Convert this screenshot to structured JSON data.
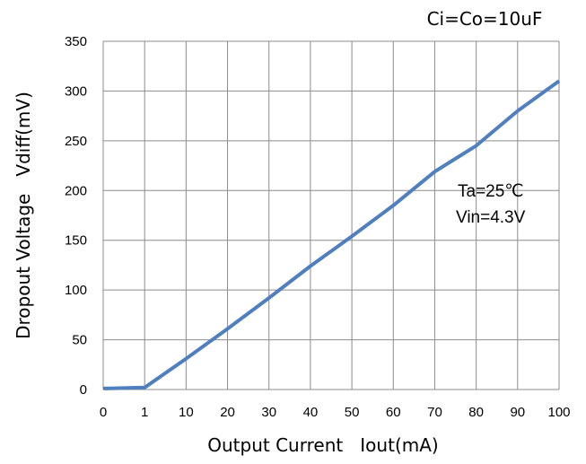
{
  "chart_data": {
    "type": "line",
    "title": "",
    "xlabel": "Output Current   Iout(mA)",
    "ylabel": "Dropout Voltage   Vdiff(mV)",
    "x_tick_labels": [
      "0",
      "1",
      "10",
      "20",
      "30",
      "40",
      "50",
      "60",
      "70",
      "80",
      "90",
      "100"
    ],
    "y_tick_labels": [
      "0",
      "50",
      "100",
      "150",
      "200",
      "250",
      "300",
      "350"
    ],
    "ylim": [
      0,
      350
    ],
    "grid": true,
    "x_axis_note": "categorical axis (0, 1, 10, ..., 100 evenly spaced)",
    "annotations": {
      "condition": "Ci=Co=10uF",
      "temperature": "Ta=25℃",
      "input_voltage": "Vin=4.3V"
    },
    "series": [
      {
        "color": "#4f7fbf",
        "points": [
          {
            "x": 0,
            "y": 1
          },
          {
            "x": 1,
            "y": 2
          },
          {
            "x": 10,
            "y": 31
          },
          {
            "x": 20,
            "y": 61
          },
          {
            "x": 30,
            "y": 92
          },
          {
            "x": 40,
            "y": 124
          },
          {
            "x": 50,
            "y": 154
          },
          {
            "x": 60,
            "y": 185
          },
          {
            "x": 70,
            "y": 219
          },
          {
            "x": 80,
            "y": 245
          },
          {
            "x": 90,
            "y": 280
          },
          {
            "x": 100,
            "y": 310
          }
        ]
      }
    ]
  }
}
